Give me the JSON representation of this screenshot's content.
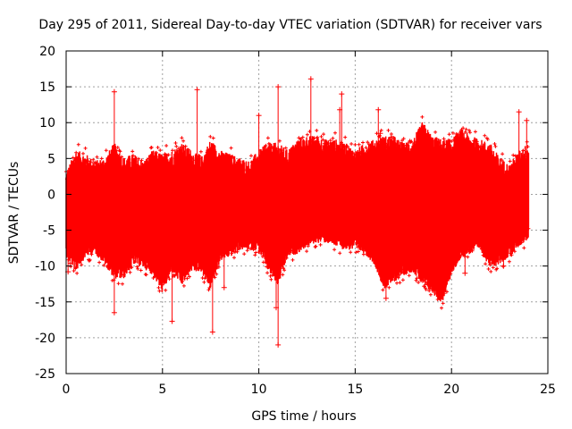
{
  "chart_data": {
    "type": "scatter",
    "title": "Day 295 of 2011, Sidereal Day-to-day VTEC variation (SDTVAR) for receiver vars",
    "xlabel": "GPS time / hours",
    "ylabel": "SDTVAR / TECUs",
    "xlim": [
      0,
      25
    ],
    "ylim": [
      -25,
      20
    ],
    "xticks": [
      0,
      5,
      10,
      15,
      20,
      25
    ],
    "yticks": [
      -25,
      -20,
      -15,
      -10,
      -5,
      0,
      5,
      10,
      15,
      20
    ],
    "xtick_labels": [
      "0",
      "5",
      "10",
      "15",
      "20",
      "25"
    ],
    "ytick_labels": [
      "-25",
      "-20",
      "-15",
      "-10",
      "-5",
      "0",
      "5",
      "10",
      "15",
      "20"
    ],
    "grid": true,
    "series": [
      {
        "name": "SDTVAR",
        "color": "#ff0000",
        "marker": "plus",
        "envelope": {
          "x": [
            0.0,
            0.5,
            1.0,
            1.5,
            2.0,
            2.5,
            3.0,
            3.5,
            4.0,
            4.5,
            5.0,
            5.5,
            6.0,
            6.5,
            7.0,
            7.5,
            8.0,
            8.5,
            9.0,
            9.5,
            10.0,
            10.5,
            11.0,
            11.5,
            12.0,
            12.5,
            13.0,
            13.5,
            14.0,
            14.5,
            15.0,
            15.5,
            16.0,
            16.5,
            17.0,
            17.5,
            18.0,
            18.5,
            19.0,
            19.5,
            20.0,
            20.5,
            21.0,
            21.5,
            22.0,
            22.5,
            23.0,
            23.5,
            24.0
          ],
          "upper": [
            2.0,
            5.0,
            4.5,
            3.5,
            4.0,
            6.0,
            4.0,
            4.5,
            3.5,
            5.0,
            4.5,
            5.0,
            6.0,
            5.0,
            4.0,
            6.5,
            5.0,
            4.5,
            4.0,
            3.5,
            5.0,
            6.0,
            6.0,
            5.0,
            6.5,
            7.0,
            7.0,
            6.5,
            6.5,
            6.0,
            5.0,
            6.0,
            6.5,
            7.0,
            7.0,
            6.0,
            6.5,
            9.0,
            7.0,
            6.5,
            6.5,
            8.0,
            7.0,
            6.5,
            6.0,
            4.0,
            3.0,
            5.0,
            6.0
          ],
          "lower": [
            -7.0,
            -9.0,
            -7.0,
            -6.5,
            -8.0,
            -10.0,
            -10.0,
            -8.0,
            -8.5,
            -9.5,
            -12.0,
            -9.0,
            -11.0,
            -9.0,
            -9.0,
            -11.5,
            -7.5,
            -7.0,
            -6.0,
            -6.0,
            -6.0,
            -9.0,
            -11.0,
            -7.0,
            -6.5,
            -5.5,
            -5.0,
            -5.0,
            -5.5,
            -6.0,
            -6.0,
            -6.5,
            -8.0,
            -11.5,
            -10.5,
            -9.5,
            -9.0,
            -11.0,
            -12.0,
            -13.5,
            -9.5,
            -7.0,
            -6.5,
            -6.0,
            -8.5,
            -8.0,
            -7.0,
            -5.5,
            -4.5
          ]
        },
        "outliers": [
          {
            "x": 0.1,
            "y": -10.8
          },
          {
            "x": 2.5,
            "y": 14.3
          },
          {
            "x": 2.5,
            "y": -16.5
          },
          {
            "x": 5.5,
            "y": -17.7
          },
          {
            "x": 6.8,
            "y": 14.6
          },
          {
            "x": 7.6,
            "y": -19.2
          },
          {
            "x": 8.2,
            "y": -13.0
          },
          {
            "x": 10.0,
            "y": 11.0
          },
          {
            "x": 10.9,
            "y": -15.8
          },
          {
            "x": 11.0,
            "y": -21.0
          },
          {
            "x": 11.0,
            "y": 15.0
          },
          {
            "x": 12.7,
            "y": 16.1
          },
          {
            "x": 14.2,
            "y": 11.8
          },
          {
            "x": 14.3,
            "y": 14.0
          },
          {
            "x": 16.2,
            "y": 11.8
          },
          {
            "x": 16.3,
            "y": 8.5
          },
          {
            "x": 16.6,
            "y": -14.5
          },
          {
            "x": 19.6,
            "y": -13.8
          },
          {
            "x": 20.7,
            "y": -11.0
          },
          {
            "x": 22.7,
            "y": -10.0
          },
          {
            "x": 23.5,
            "y": 11.5
          },
          {
            "x": 23.9,
            "y": 10.3
          }
        ]
      }
    ]
  }
}
